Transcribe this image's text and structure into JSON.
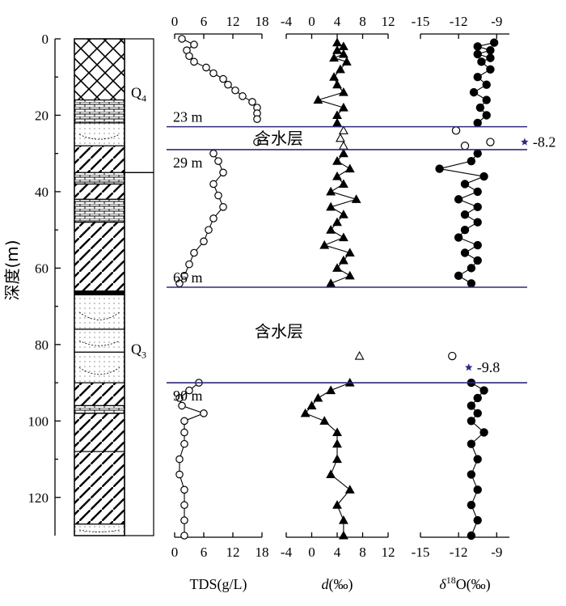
{
  "chart_data": {
    "type": "scatter",
    "ylabel": "深度(m)",
    "ylim": [
      0,
      130
    ],
    "yticks": [
      "0",
      "20",
      "40",
      "60",
      "80",
      "100",
      "120"
    ],
    "colors": {
      "marker": "#000000",
      "aquifer_line": "#2e2a7e",
      "star": "#2e2a7e"
    },
    "stratigraphy": {
      "units": [
        {
          "label": "Q",
          "sub": "4",
          "top": 0,
          "bottom": 35
        },
        {
          "label": "Q",
          "sub": "3",
          "top": 35,
          "bottom": 130
        }
      ],
      "layers": [
        {
          "top": 0,
          "bottom": 16,
          "pattern": "crosshatch"
        },
        {
          "top": 16,
          "bottom": 22,
          "pattern": "brick"
        },
        {
          "top": 22,
          "bottom": 28,
          "pattern": "dots"
        },
        {
          "top": 28,
          "bottom": 35,
          "pattern": "diagonal"
        },
        {
          "top": 35,
          "bottom": 38,
          "pattern": "brick"
        },
        {
          "top": 38,
          "bottom": 42,
          "pattern": "diagonal"
        },
        {
          "top": 42,
          "bottom": 48,
          "pattern": "brick"
        },
        {
          "top": 48,
          "bottom": 66,
          "pattern": "diagonal"
        },
        {
          "top": 66,
          "bottom": 67,
          "pattern": "solid"
        },
        {
          "top": 67,
          "bottom": 76,
          "pattern": "dots"
        },
        {
          "top": 76,
          "bottom": 82,
          "pattern": "dots"
        },
        {
          "top": 82,
          "bottom": 90,
          "pattern": "dots"
        },
        {
          "top": 90,
          "bottom": 96,
          "pattern": "diagonal"
        },
        {
          "top": 96,
          "bottom": 98,
          "pattern": "brick"
        },
        {
          "top": 98,
          "bottom": 108,
          "pattern": "diagonal"
        },
        {
          "top": 108,
          "bottom": 127,
          "pattern": "diagonal"
        },
        {
          "top": 127,
          "bottom": 130,
          "pattern": "dots"
        }
      ]
    },
    "aquifers": [
      {
        "top_depth": 23,
        "bottom_depth": 29,
        "top_label": "23 m",
        "bottom_label": "29 m",
        "name": "含水层",
        "star_value": -8.2,
        "star_label": "-8.2"
      },
      {
        "top_depth": 65,
        "bottom_depth": 90,
        "top_label": "65 m",
        "bottom_label": "90 m",
        "name": "含水层",
        "star_value": -9.8,
        "star_label": "-9.8"
      }
    ],
    "panels": [
      {
        "xlabel": "TDS(g/L)",
        "xlim": [
          0,
          18
        ],
        "xticks": [
          "0",
          "6",
          "12",
          "18"
        ],
        "marker": "circle",
        "segments": [
          {
            "depth": [
              0,
              1.5,
              3,
              4.5,
              6,
              7.5,
              9,
              10.5,
              12,
              13.5,
              15,
              16.5,
              18,
              19.5,
              21
            ],
            "value": [
              1.5,
              4,
              2.5,
              3,
              4,
              6.5,
              8,
              10,
              11,
              12.5,
              14,
              16,
              17,
              17,
              17
            ]
          },
          {
            "depth": [
              30,
              32,
              35,
              38,
              41,
              44,
              47,
              50,
              53,
              56,
              59,
              62,
              64
            ],
            "value": [
              8,
              9,
              10,
              8,
              9,
              10,
              8,
              7,
              6,
              4,
              3,
              2,
              1
            ]
          },
          {
            "depth": [
              90,
              92,
              94,
              96,
              98,
              100,
              103,
              106,
              110,
              114,
              118,
              122,
              126,
              130
            ],
            "value": [
              5,
              3,
              1,
              1.5,
              6,
              2,
              2,
              2,
              1,
              1,
              2,
              2,
              2,
              2
            ]
          }
        ],
        "isolated": [
          {
            "depth": 27,
            "value": 17
          }
        ]
      },
      {
        "xlabel": "d(‰)",
        "xlim": [
          -4,
          12
        ],
        "xticks": [
          "-4",
          "0",
          "4",
          "8",
          "12"
        ],
        "marker": "triangle",
        "segments": [
          {
            "depth": [
              1,
              2,
              3,
              4,
              5,
              6,
              8,
              10,
              12,
              14,
              16,
              18,
              20,
              22
            ],
            "value": [
              4,
              5,
              4,
              5,
              3.5,
              5.5,
              4.5,
              3.5,
              4,
              5,
              1,
              5,
              4,
              4
            ]
          },
          {
            "depth": [
              30,
              32,
              34,
              36,
              38,
              40,
              42,
              44,
              46,
              48,
              50,
              52,
              54,
              56,
              58,
              60,
              62,
              64
            ],
            "value": [
              5,
              4,
              6,
              4,
              5,
              3,
              7,
              3,
              5,
              4,
              3,
              5,
              2,
              6,
              5,
              4,
              6,
              3
            ]
          },
          {
            "depth": [
              90,
              92,
              94,
              96,
              98,
              100,
              103,
              106,
              110,
              114,
              118,
              122,
              126,
              130
            ],
            "value": [
              6,
              3,
              1,
              0,
              -1,
              2,
              4,
              4,
              4,
              3,
              6,
              4,
              5,
              5
            ]
          }
        ],
        "isolated": [
          {
            "depth": 24,
            "value": 5,
            "hollow": true
          },
          {
            "depth": 26,
            "value": 4.5,
            "hollow": true
          },
          {
            "depth": 28,
            "value": 5,
            "hollow": true
          },
          {
            "depth": 83,
            "value": 7.5,
            "hollow": true
          }
        ]
      },
      {
        "xlabel": "δ18O(‰)",
        "xlim": [
          -15,
          -8
        ],
        "xticks": [
          "-15",
          "-12",
          "-9"
        ],
        "marker": "circle-filled",
        "segments": [
          {
            "depth": [
              1,
              2,
              3,
              4,
              5,
              6,
              8,
              10,
              12,
              14,
              16,
              18,
              20,
              22
            ],
            "value": [
              -9.2,
              -10.5,
              -9.5,
              -10.5,
              -9.5,
              -10.2,
              -9.5,
              -10.5,
              -9.8,
              -10.8,
              -9.8,
              -10.3,
              -9.8,
              -10.5
            ]
          },
          {
            "depth": [
              30,
              32,
              34,
              36,
              38,
              40,
              42,
              44,
              46,
              48,
              50,
              52,
              54,
              56,
              58,
              60,
              62,
              64
            ],
            "value": [
              -10.5,
              -11,
              -13.5,
              -10,
              -11.5,
              -10.5,
              -12,
              -10.5,
              -11.5,
              -10.5,
              -11.5,
              -12,
              -10.5,
              -11.5,
              -10.5,
              -11,
              -12,
              -11
            ]
          },
          {
            "depth": [
              90,
              92,
              94,
              96,
              98,
              100,
              103,
              106,
              110,
              114,
              118,
              122,
              126,
              130
            ],
            "value": [
              -11,
              -10,
              -10.5,
              -11,
              -10.5,
              -11,
              -10,
              -11,
              -10.5,
              -11,
              -10.5,
              -11,
              -10.5,
              -11
            ]
          }
        ],
        "isolated": [
          {
            "depth": 24,
            "value": -12.2,
            "hollow": true
          },
          {
            "depth": 27,
            "value": -9.5,
            "hollow": true
          },
          {
            "depth": 28,
            "value": -11.5,
            "hollow": true
          },
          {
            "depth": 83,
            "value": -12.5,
            "hollow": true
          }
        ]
      }
    ]
  }
}
